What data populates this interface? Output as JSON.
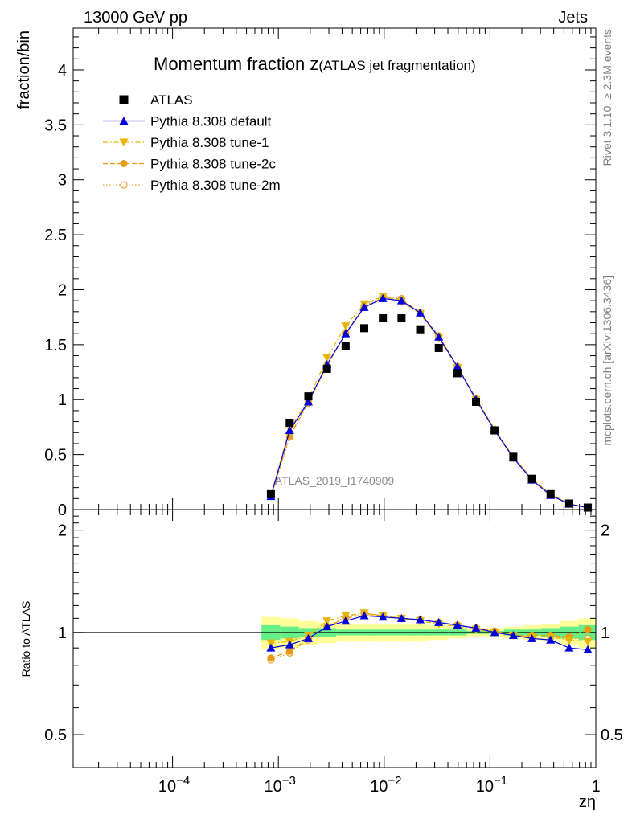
{
  "header": {
    "left": "13000 GeV pp",
    "right": "Jets"
  },
  "side_labels": {
    "rivet": "Rivet 3.1.10, ≥ 2.3M events",
    "mcplots": "mcplots.cern.ch [arXiv:1306.3436]"
  },
  "colors": {
    "data": "#000000",
    "default": "#0000dd",
    "tune1": "#e8b400",
    "tune2c": "#e89a10",
    "tune2m": "#e8a030",
    "band_outer": "#ffff99",
    "band_inner": "#66ee88"
  },
  "chart_data": {
    "type": "line",
    "title": "Momentum fraction z",
    "subtitle": "(ATLAS jet fragmentation)",
    "watermark": "ATLAS_2019_I1740909",
    "xlabel": "zη",
    "ylabel": "fraction/bin",
    "ratio_ylabel": "Ratio to ATLAS",
    "xscale": "log",
    "xlim": [
      1.15e-05,
      1.0
    ],
    "ylim": [
      0,
      4.38
    ],
    "ratio_ylim": [
      0.4,
      2.3
    ],
    "ratio_scale": "log",
    "legend_position": "top-left",
    "main_yticks": [
      "0",
      "0.5",
      "1",
      "1.5",
      "2",
      "2.5",
      "3",
      "3.5",
      "4"
    ],
    "xticks": [
      {
        "base": "10",
        "exp": "−4",
        "value": 0.0001
      },
      {
        "base": "10",
        "exp": "−3",
        "value": 0.001
      },
      {
        "base": "10",
        "exp": "−2",
        "value": 0.01
      },
      {
        "base": "10",
        "exp": "−1",
        "value": 0.1
      },
      {
        "base": "1",
        "exp": "",
        "value": 1.0
      }
    ],
    "ratio_yticks": [
      "0.5",
      "1",
      "2"
    ],
    "x": [
      0.00085,
      0.00128,
      0.00192,
      0.00288,
      0.00432,
      0.00648,
      0.00972,
      0.01458,
      0.02187,
      0.0328,
      0.0492,
      0.0738,
      0.1107,
      0.166,
      0.249,
      0.3737,
      0.5605,
      0.84
    ],
    "data": {
      "name": "ATLAS",
      "values": [
        0.14,
        0.79,
        1.03,
        1.28,
        1.49,
        1.65,
        1.74,
        1.74,
        1.64,
        1.47,
        1.24,
        0.98,
        0.72,
        0.48,
        0.28,
        0.14,
        0.055,
        0.018
      ]
    },
    "series": [
      {
        "name": "Pythia 8.308 default",
        "style": "solid",
        "marker": "triangle-up",
        "color_key": "default",
        "values": [
          0.12,
          0.72,
          0.98,
          1.32,
          1.6,
          1.84,
          1.92,
          1.9,
          1.79,
          1.57,
          1.3,
          1.0,
          0.72,
          0.47,
          0.27,
          0.13,
          0.05,
          0.016
        ],
        "ratio": [
          0.9,
          0.92,
          0.96,
          1.04,
          1.08,
          1.12,
          1.11,
          1.1,
          1.09,
          1.07,
          1.05,
          1.03,
          1.0,
          0.98,
          0.96,
          0.95,
          0.9,
          0.89
        ]
      },
      {
        "name": "Pythia 8.308 tune-1",
        "style": "dash-dot",
        "marker": "triangle-down",
        "color_key": "tune1",
        "values": [
          0.13,
          0.74,
          1.0,
          1.38,
          1.67,
          1.87,
          1.94,
          1.89,
          1.78,
          1.56,
          1.29,
          1.0,
          0.72,
          0.47,
          0.27,
          0.135,
          0.052,
          0.017
        ],
        "ratio": [
          0.93,
          0.94,
          0.98,
          1.08,
          1.12,
          1.14,
          1.12,
          1.1,
          1.08,
          1.06,
          1.04,
          1.02,
          1.0,
          0.98,
          0.97,
          0.97,
          0.95,
          0.94
        ]
      },
      {
        "name": "Pythia 8.308 tune-2c",
        "style": "dashed",
        "marker": "circle-filled",
        "color_key": "tune2c",
        "values": [
          0.12,
          0.67,
          0.98,
          1.31,
          1.6,
          1.84,
          1.93,
          1.91,
          1.79,
          1.58,
          1.3,
          1.01,
          0.73,
          0.48,
          0.28,
          0.14,
          0.053,
          0.018
        ],
        "ratio": [
          0.84,
          0.88,
          0.96,
          1.04,
          1.1,
          1.13,
          1.12,
          1.1,
          1.09,
          1.07,
          1.05,
          1.03,
          1.01,
          0.98,
          0.98,
          0.98,
          0.97,
          1.02
        ]
      },
      {
        "name": "Pythia 8.308 tune-2m",
        "style": "dotted",
        "marker": "circle-open",
        "color_key": "tune2m",
        "values": [
          0.12,
          0.66,
          0.97,
          1.3,
          1.61,
          1.85,
          1.94,
          1.92,
          1.79,
          1.58,
          1.3,
          1.0,
          0.72,
          0.48,
          0.28,
          0.14,
          0.053,
          0.017
        ],
        "ratio": [
          0.83,
          0.87,
          0.95,
          1.04,
          1.11,
          1.14,
          1.12,
          1.1,
          1.09,
          1.07,
          1.05,
          1.03,
          1.0,
          0.98,
          0.97,
          0.97,
          0.96,
          0.96
        ]
      }
    ],
    "ratio_band": {
      "outer_lo": [
        0.89,
        0.9,
        0.92,
        0.93,
        0.94,
        0.94,
        0.94,
        0.94,
        0.94,
        0.95,
        0.96,
        0.97,
        0.97,
        0.96,
        0.95,
        0.94,
        0.92,
        0.9
      ],
      "outer_hi": [
        1.11,
        1.1,
        1.08,
        1.07,
        1.06,
        1.06,
        1.06,
        1.06,
        1.06,
        1.05,
        1.04,
        1.03,
        1.03,
        1.04,
        1.05,
        1.06,
        1.08,
        1.1
      ],
      "inner_lo": [
        0.95,
        0.96,
        0.97,
        0.97,
        0.98,
        0.98,
        0.98,
        0.98,
        0.98,
        0.98,
        0.98,
        0.99,
        0.99,
        0.98,
        0.98,
        0.97,
        0.96,
        0.95
      ],
      "inner_hi": [
        1.05,
        1.04,
        1.03,
        1.03,
        1.02,
        1.02,
        1.02,
        1.02,
        1.02,
        1.02,
        1.02,
        1.01,
        1.01,
        1.02,
        1.02,
        1.03,
        1.04,
        1.05
      ]
    }
  }
}
